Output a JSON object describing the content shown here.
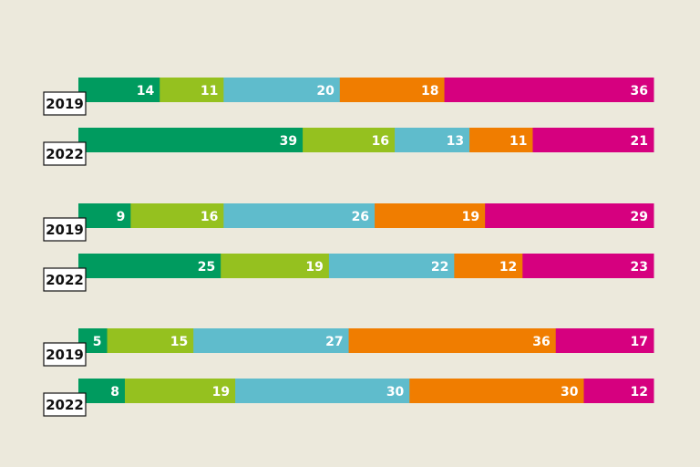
{
  "chart_data": {
    "type": "bar",
    "orientation": "horizontal-stacked-100",
    "colors": [
      "#009b5f",
      "#95c11f",
      "#5fbccc",
      "#f07d00",
      "#d6007f"
    ],
    "rows": [
      {
        "year": "2019",
        "values": [
          14,
          11,
          20,
          18,
          36
        ]
      },
      {
        "year": "2022",
        "values": [
          39,
          16,
          13,
          11,
          21
        ]
      },
      {
        "year": "2019",
        "values": [
          9,
          16,
          26,
          19,
          29
        ]
      },
      {
        "year": "2022",
        "values": [
          25,
          19,
          22,
          12,
          23
        ]
      },
      {
        "year": "2019",
        "values": [
          5,
          15,
          27,
          36,
          17
        ]
      },
      {
        "year": "2022",
        "values": [
          8,
          19,
          30,
          30,
          12
        ]
      }
    ]
  }
}
